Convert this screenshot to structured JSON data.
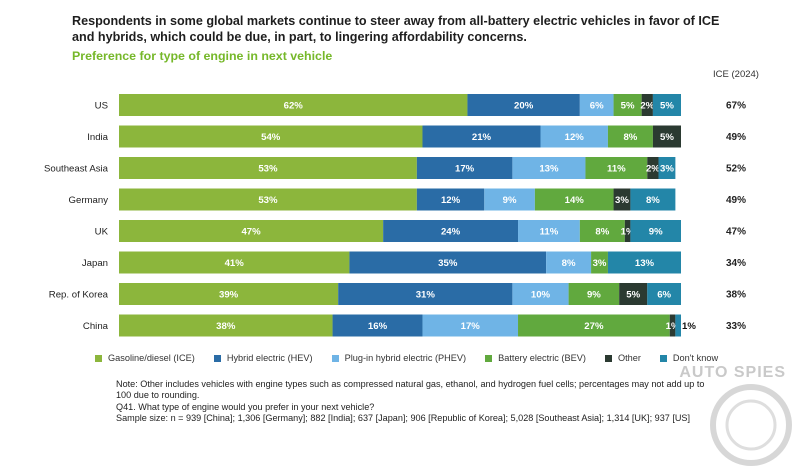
{
  "header": {
    "title": "Respondents in some global markets continue to steer away from all-battery electric vehicles in favor of ICE and hybrids, which could be due, in part, to lingering affordability concerns.",
    "subtitle": "Preference for type of engine in next vehicle"
  },
  "colors": {
    "ice": "#8cb63c",
    "hev": "#2a6ca6",
    "phev": "#6fb4e6",
    "bev": "#61a93e",
    "other": "#2b3a31",
    "dont_know": "#2386a8"
  },
  "chart_data": {
    "type": "bar",
    "orientation": "horizontal",
    "stacked": true,
    "categories": [
      "US",
      "India",
      "Southeast Asia",
      "Germany",
      "UK",
      "Japan",
      "Rep. of Korea",
      "China"
    ],
    "series": [
      {
        "name": "Gasoline/diesel (ICE)",
        "key": "ice",
        "values": [
          62,
          54,
          53,
          53,
          47,
          41,
          39,
          38
        ],
        "labels": [
          "62%",
          "54%",
          "53%",
          "53%",
          "47%",
          "41%",
          "39%",
          "38%"
        ]
      },
      {
        "name": "Hybrid electric (HEV)",
        "key": "hev",
        "values": [
          20,
          21,
          17,
          12,
          24,
          35,
          31,
          16
        ],
        "labels": [
          "20%",
          "21%",
          "17%",
          "12%",
          "24%",
          "35%",
          "31%",
          "16%"
        ]
      },
      {
        "name": "Plug-in hybrid electric (PHEV)",
        "key": "phev",
        "values": [
          6,
          12,
          13,
          9,
          11,
          8,
          10,
          17
        ],
        "labels": [
          "6%",
          "12%",
          "13%",
          "9%",
          "11%",
          "8%",
          "10%",
          "17%"
        ]
      },
      {
        "name": "Battery electric (BEV)",
        "key": "bev",
        "values": [
          5,
          8,
          11,
          14,
          8,
          3,
          9,
          27
        ],
        "labels": [
          "5%",
          "8%",
          "11%",
          "14%",
          "8%",
          "3%",
          "9%",
          "27%"
        ]
      },
      {
        "name": "Other",
        "key": "other",
        "values": [
          2,
          5,
          2,
          3,
          1,
          0,
          5,
          1
        ],
        "labels": [
          "2%",
          "5%",
          "2%",
          "3%",
          "1%",
          "",
          "5%",
          "1%"
        ]
      },
      {
        "name": "Don't know",
        "key": "dont_know",
        "values": [
          5,
          0,
          3,
          8,
          9,
          13,
          6,
          1
        ],
        "labels": [
          "5%",
          "",
          "3%",
          "8%",
          "9%",
          "13%",
          "6%",
          "1%"
        ]
      }
    ],
    "extra_column": {
      "header": "ICE (2024)",
      "values": [
        "67%",
        "49%",
        "52%",
        "49%",
        "47%",
        "34%",
        "38%",
        "33%"
      ]
    },
    "xlim": [
      0,
      100
    ],
    "grid": false,
    "legend_position": "bottom"
  },
  "notes": {
    "line1": "Note: Other includes vehicles with engine types such as compressed natural gas, ethanol, and hydrogen fuel cells; percentages may not add up to 100 due to rounding.",
    "line2": "Q41. What type of engine would you prefer in your next vehicle?",
    "line3": "Sample size: n = 939 [China]; 1,306 [Germany]; 882 [India]; 637 [Japan]; 906 [Republic of Korea]; 5,028 [Southeast Asia]; 1,314 [UK]; 937 [US]"
  },
  "watermark": {
    "text": "AUTO SPIES"
  }
}
